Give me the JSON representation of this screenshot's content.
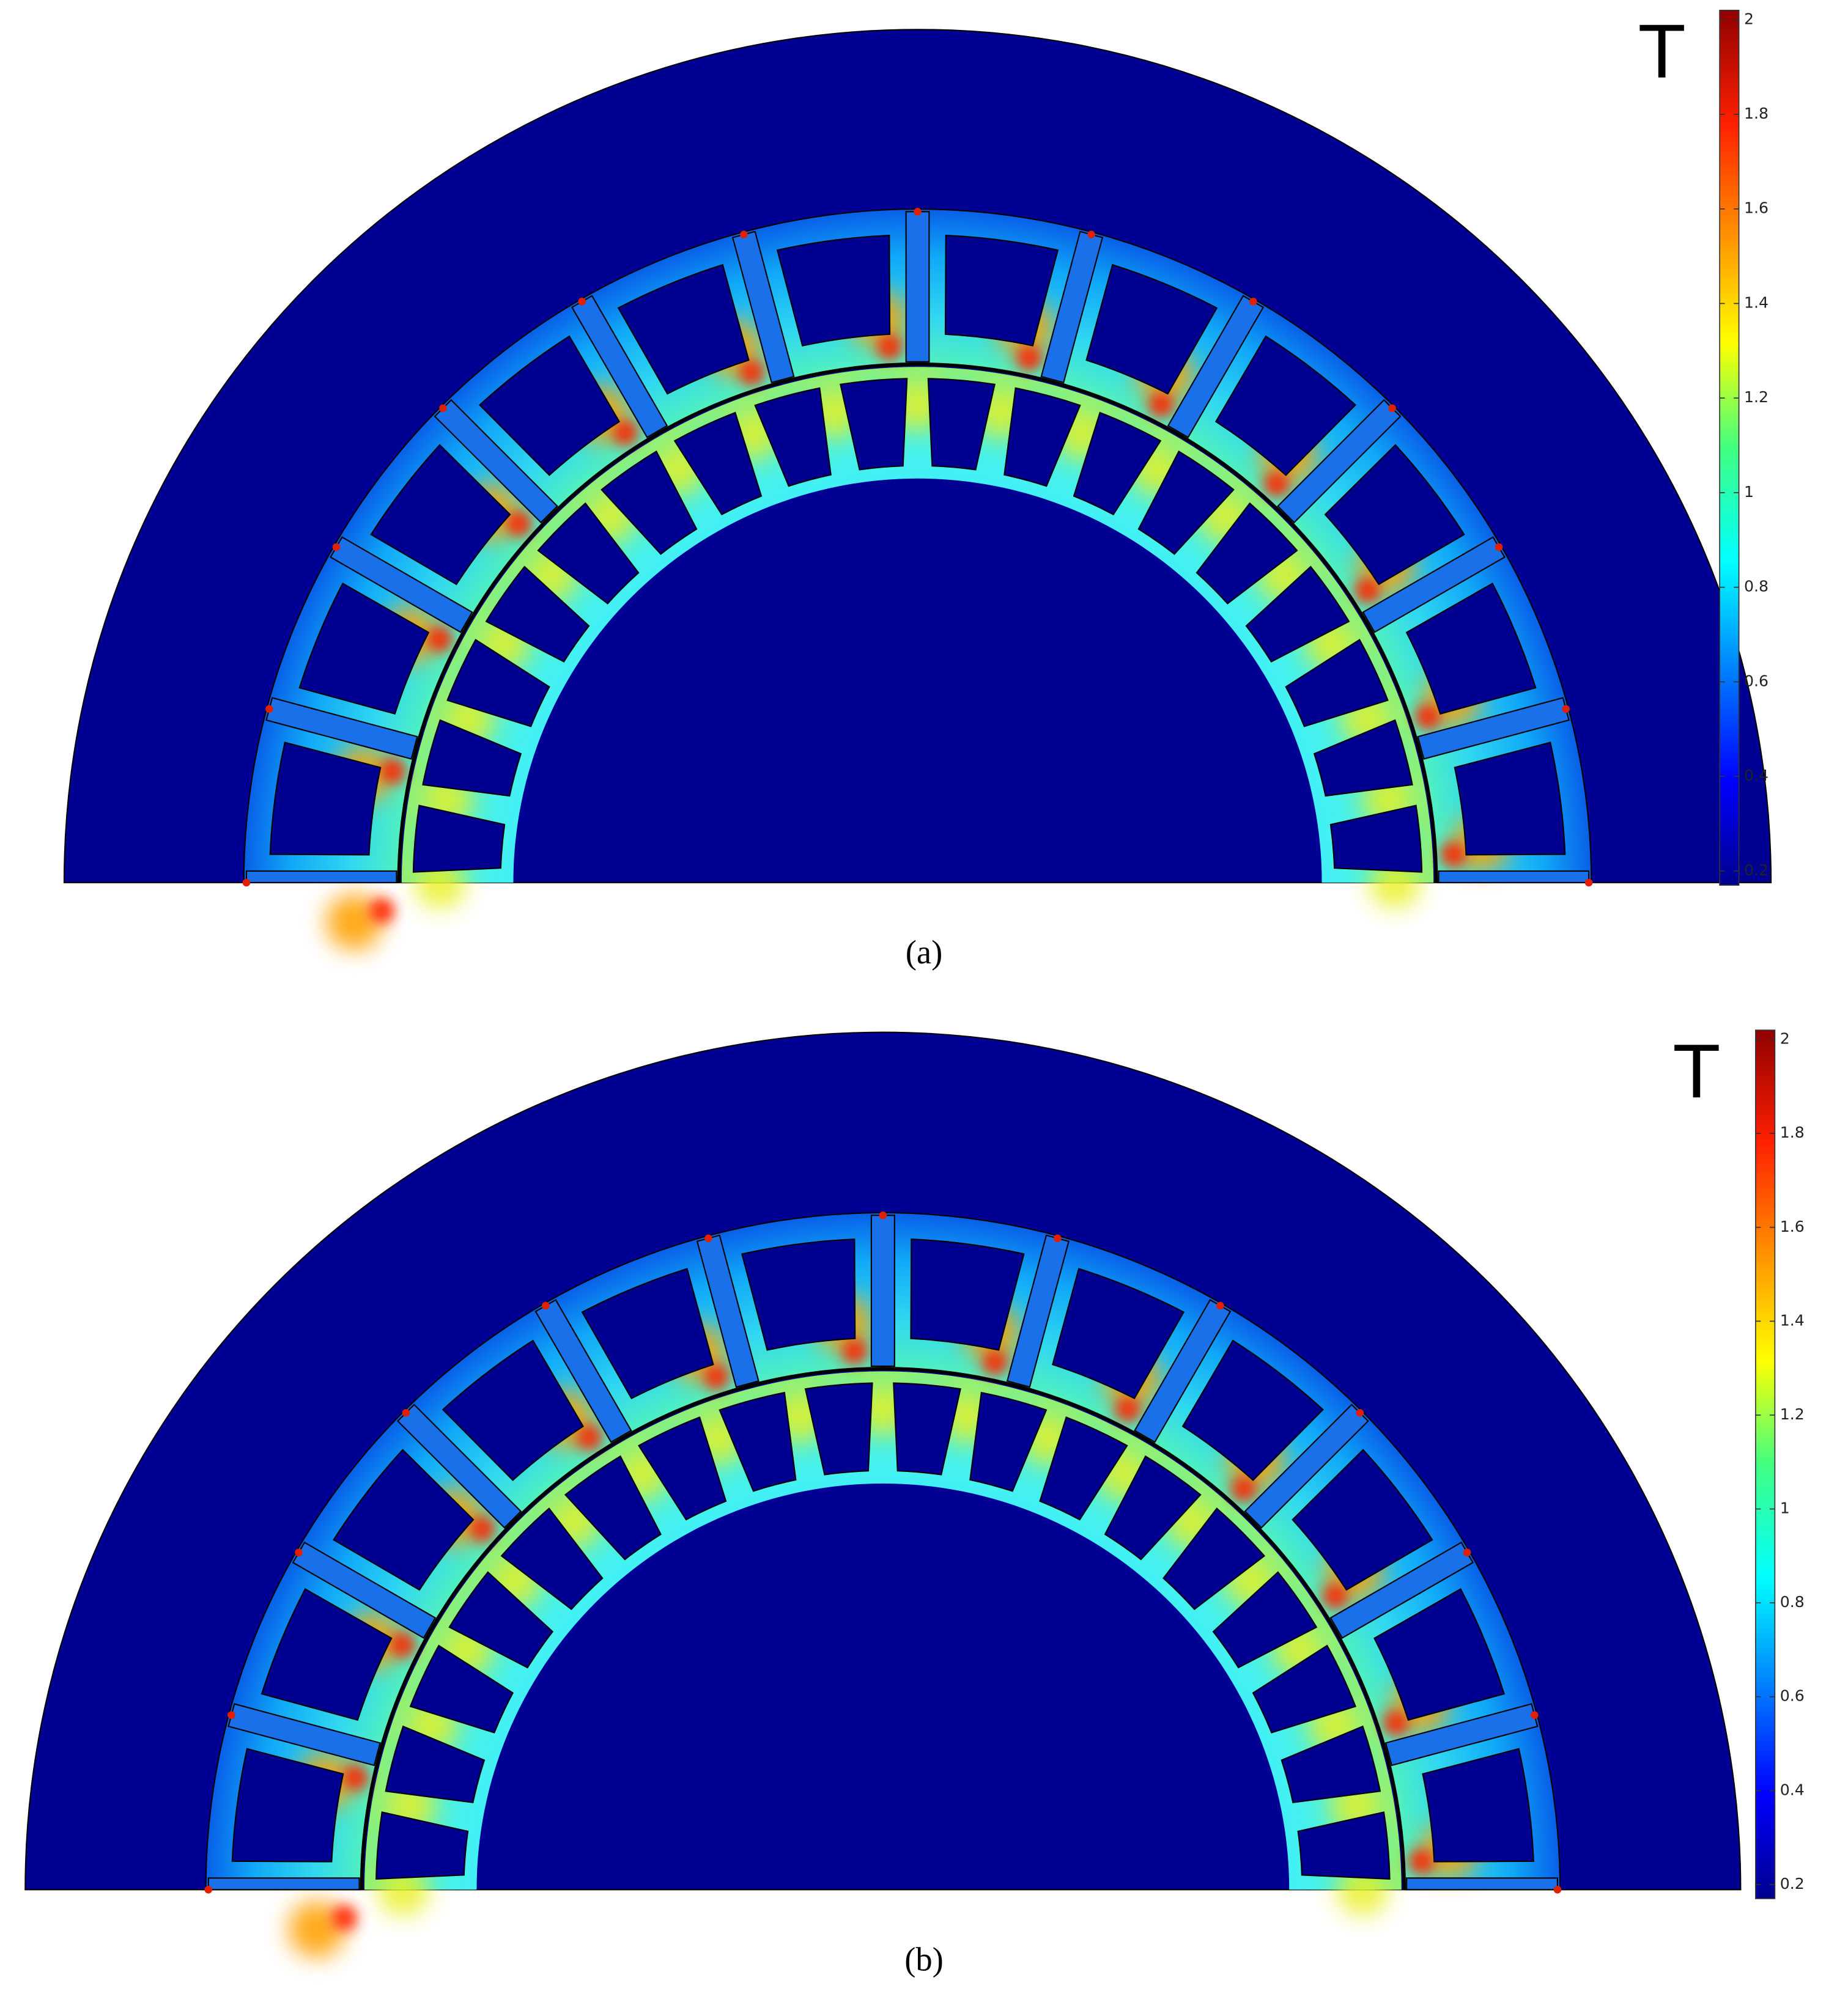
{
  "panels": [
    {
      "label": "(a)",
      "colorbar": {
        "unit": "T",
        "lim": [
          0.17,
          2.02
        ],
        "ticks": [
          0.2,
          0.4,
          0.6,
          0.8,
          1,
          1.2,
          1.4,
          1.6,
          1.8,
          2
        ]
      }
    },
    {
      "label": "(b)",
      "colorbar": {
        "unit": "T",
        "lim": [
          0.17,
          2.02
        ],
        "ticks": [
          0.2,
          0.4,
          0.6,
          0.8,
          1,
          1.2,
          1.4,
          1.6,
          1.8,
          2
        ]
      }
    }
  ]
}
